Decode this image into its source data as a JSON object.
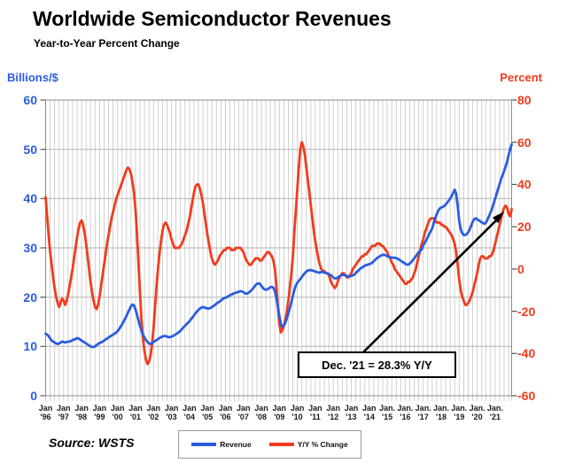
{
  "header": {
    "title": "Worldwide Semiconductor Revenues",
    "subtitle": "Year-to-Year Percent Change"
  },
  "axes": {
    "left": {
      "label": "Billions/$",
      "color": "#2b5ce0",
      "ticks": [
        60,
        50,
        40,
        30,
        20,
        10,
        0
      ]
    },
    "right": {
      "label": "Percent",
      "color": "#f23b1c",
      "ticks": [
        80,
        60,
        40,
        20,
        0,
        -20,
        -40,
        -60
      ]
    },
    "x": {
      "labels": [
        {
          "m": "Jan",
          "y": "'96"
        },
        {
          "m": "Jan",
          "y": "'97"
        },
        {
          "m": "Jan",
          "y": "'98"
        },
        {
          "m": "Jan",
          "y": "'99"
        },
        {
          "m": "Jan",
          "y": "'00"
        },
        {
          "m": "Jan",
          "y": "'01"
        },
        {
          "m": "Jan",
          "y": "'02"
        },
        {
          "m": "Jan",
          "y": "'03"
        },
        {
          "m": "Jan",
          "y": "'04"
        },
        {
          "m": "Jan",
          "y": "'05"
        },
        {
          "m": "Jan",
          "y": "'06"
        },
        {
          "m": "Jan",
          "y": "'07"
        },
        {
          "m": "Jan",
          "y": "'08"
        },
        {
          "m": "Jan",
          "y": "'09"
        },
        {
          "m": "Jan",
          "y": "'10"
        },
        {
          "m": "Jan",
          "y": "'11"
        },
        {
          "m": "Jan",
          "y": "'12"
        },
        {
          "m": "Jan",
          "y": "'13"
        },
        {
          "m": "Jan",
          "y": "'14"
        },
        {
          "m": "Jan.",
          "y": "'15"
        },
        {
          "m": "Jan.",
          "y": "'16"
        },
        {
          "m": "Jan.",
          "y": "'17"
        },
        {
          "m": "Jan.",
          "y": "'18"
        },
        {
          "m": "Jan.",
          "y": "'19"
        },
        {
          "m": "Jan.",
          "y": "'20"
        },
        {
          "m": "Jan.",
          "y": "'21"
        }
      ]
    }
  },
  "annotation": {
    "text": "Dec. '21 = 28.3% Y/Y"
  },
  "legend": {
    "items": [
      {
        "label": "Revenue",
        "color": "#2b5ce0"
      },
      {
        "label": "Y/Y % Change",
        "color": "#f23b1c"
      }
    ]
  },
  "source": "Source: WSTS",
  "chart_data": {
    "type": "line",
    "title": "Worldwide Semiconductor Revenues",
    "subtitle": "Year-to-Year Percent Change",
    "x_start": "1996-01",
    "x_end": "2021-12",
    "x_interval": "monthly",
    "left_axis": {
      "label": "Billions/$",
      "ylim": [
        0,
        60
      ]
    },
    "right_axis": {
      "label": "Percent",
      "ylim": [
        -60,
        80
      ]
    },
    "grid": "dense vertical quarterly lines; horizontal lines every 10 on left scale",
    "legend_position": "bottom-center",
    "annotation": "Dec. '21 = 28.3% Y/Y (arrow pointing to final Y/Y value)",
    "series": [
      {
        "name": "Revenue",
        "axis": "left",
        "unit": "US$ billions per month",
        "color": "#2b5ce0",
        "values": [
          12.6,
          12.4,
          12.1,
          11.6,
          11.2,
          11.0,
          10.8,
          10.6,
          10.5,
          10.6,
          10.8,
          11.0,
          10.9,
          10.8,
          10.9,
          11.0,
          11.0,
          11.1,
          11.3,
          11.4,
          11.5,
          11.7,
          11.6,
          11.4,
          11.2,
          11.0,
          10.8,
          10.6,
          10.4,
          10.2,
          10.0,
          9.9,
          9.9,
          10.0,
          10.3,
          10.5,
          10.7,
          10.8,
          11.0,
          11.2,
          11.4,
          11.6,
          11.8,
          12.0,
          12.2,
          12.4,
          12.6,
          12.8,
          13.1,
          13.5,
          14.0,
          14.5,
          15.0,
          15.6,
          16.2,
          16.9,
          17.5,
          18.2,
          18.5,
          18.3,
          17.5,
          16.4,
          15.2,
          14.1,
          13.2,
          12.4,
          11.8,
          11.3,
          10.9,
          10.6,
          10.5,
          10.7,
          10.9,
          11.1,
          11.3,
          11.5,
          11.7,
          11.9,
          12.0,
          12.1,
          12.1,
          12.0,
          11.9,
          11.9,
          12.0,
          12.1,
          12.3,
          12.5,
          12.7,
          12.9,
          13.2,
          13.5,
          13.9,
          14.2,
          14.5,
          14.8,
          15.1,
          15.5,
          15.9,
          16.3,
          16.7,
          17.1,
          17.4,
          17.7,
          17.9,
          18.0,
          17.9,
          17.8,
          17.7,
          17.7,
          17.8,
          18.0,
          18.2,
          18.4,
          18.7,
          18.9,
          19.1,
          19.3,
          19.6,
          19.8,
          19.9,
          20.0,
          20.2,
          20.4,
          20.5,
          20.7,
          20.8,
          20.9,
          21.0,
          21.1,
          21.2,
          21.2,
          21.0,
          20.8,
          20.7,
          20.8,
          21.0,
          21.3,
          21.6,
          22.0,
          22.4,
          22.7,
          22.8,
          22.7,
          22.3,
          21.9,
          21.6,
          21.5,
          21.6,
          21.8,
          22.0,
          22.1,
          21.9,
          21.2,
          19.8,
          18.0,
          16.2,
          14.6,
          14.0,
          14.2,
          14.8,
          15.7,
          16.7,
          17.8,
          19.0,
          20.3,
          21.5,
          22.4,
          22.9,
          23.3,
          23.7,
          24.1,
          24.5,
          24.9,
          25.2,
          25.4,
          25.5,
          25.5,
          25.4,
          25.3,
          25.2,
          25.1,
          25.0,
          25.0,
          25.1,
          25.1,
          25.0,
          24.9,
          24.8,
          24.7,
          24.5,
          24.3,
          24.0,
          23.8,
          23.8,
          24.0,
          24.2,
          24.4,
          24.5,
          24.5,
          24.4,
          24.3,
          24.2,
          24.2,
          24.3,
          24.4,
          24.6,
          24.9,
          25.2,
          25.5,
          25.8,
          26.0,
          26.2,
          26.4,
          26.5,
          26.6,
          26.7,
          26.8,
          27.0,
          27.3,
          27.6,
          27.9,
          28.1,
          28.3,
          28.5,
          28.6,
          28.6,
          28.5,
          28.3,
          28.2,
          28.1,
          28.0,
          28.0,
          28.0,
          27.9,
          27.8,
          27.6,
          27.4,
          27.2,
          27.0,
          26.8,
          26.6,
          26.6,
          26.8,
          27.1,
          27.5,
          27.9,
          28.3,
          28.7,
          29.1,
          29.4,
          29.7,
          30.5,
          31.0,
          31.6,
          32.2,
          32.8,
          33.4,
          34.0,
          35.0,
          36.0,
          36.8,
          37.5,
          38.0,
          38.2,
          38.3,
          38.5,
          38.8,
          39.2,
          39.6,
          40.0,
          40.5,
          41.2,
          41.8,
          41.0,
          38.6,
          35.5,
          33.8,
          33.0,
          32.6,
          32.6,
          32.8,
          33.2,
          33.7,
          34.5,
          35.3,
          35.8,
          36.0,
          35.8,
          35.6,
          35.4,
          35.2,
          35.0,
          34.9,
          35.2,
          35.8,
          36.5,
          37.2,
          38.0,
          39.0,
          40.0,
          41.0,
          42.0,
          43.0,
          44.0,
          44.8,
          45.6,
          46.5,
          47.5,
          48.8,
          50.0,
          51.0
        ]
      },
      {
        "name": "Y/Y % Change",
        "axis": "right",
        "unit": "percent",
        "color": "#f23b1c",
        "values": [
          34,
          25,
          16,
          8,
          2,
          -4,
          -9,
          -13,
          -16,
          -18,
          -16,
          -14,
          -15,
          -17,
          -15,
          -12,
          -8,
          -4,
          0,
          5,
          10,
          15,
          19,
          22,
          23,
          21,
          17,
          12,
          6,
          0,
          -6,
          -11,
          -15,
          -18,
          -19,
          -17,
          -13,
          -8,
          -3,
          2,
          7,
          12,
          16,
          20,
          24,
          27,
          30,
          33,
          35,
          37,
          39,
          41,
          43,
          45,
          47,
          48,
          47,
          45,
          41,
          36,
          28,
          16,
          2,
          -12,
          -24,
          -33,
          -39,
          -43,
          -45,
          -44,
          -41,
          -36,
          -28,
          -18,
          -8,
          0,
          7,
          13,
          18,
          21,
          22,
          21,
          19,
          17,
          14,
          12,
          10,
          10,
          10,
          10,
          11,
          12,
          14,
          16,
          18,
          21,
          24,
          28,
          32,
          36,
          39,
          40,
          40,
          38,
          35,
          31,
          26,
          21,
          16,
          12,
          8,
          5,
          3,
          2,
          3,
          4,
          6,
          7,
          8,
          9,
          9,
          10,
          10,
          10,
          9,
          9,
          9,
          10,
          10,
          10,
          10,
          9,
          8,
          6,
          4,
          3,
          2,
          2,
          3,
          4,
          5,
          5,
          5,
          4,
          4,
          5,
          6,
          7,
          8,
          8,
          7,
          6,
          4,
          0,
          -8,
          -18,
          -26,
          -30,
          -29,
          -27,
          -24,
          -20,
          -15,
          -9,
          -2,
          6,
          18,
          28,
          38,
          48,
          57,
          60,
          58,
          54,
          48,
          42,
          36,
          30,
          24,
          18,
          13,
          9,
          5,
          2,
          0,
          -1,
          -1,
          -2,
          -2,
          -3,
          -5,
          -7,
          -8,
          -9,
          -8,
          -6,
          -4,
          -3,
          -2,
          -2,
          -3,
          -4,
          -4,
          -3,
          -2,
          0,
          1,
          2,
          3,
          4,
          5,
          6,
          6,
          7,
          7,
          8,
          9,
          10,
          11,
          11,
          11,
          12,
          12,
          12,
          11,
          11,
          10,
          9,
          8,
          6,
          5,
          3,
          2,
          0,
          -1,
          -2,
          -3,
          -4,
          -5,
          -6,
          -7,
          -7,
          -6,
          -6,
          -5,
          -4,
          -2,
          0,
          3,
          6,
          9,
          12,
          14,
          17,
          19,
          21,
          23,
          24,
          24,
          24,
          23,
          22,
          22,
          22,
          21,
          21,
          20,
          20,
          19,
          18,
          17,
          16,
          14,
          12,
          8,
          2,
          -5,
          -10,
          -13,
          -15,
          -17,
          -17,
          -16,
          -15,
          -13,
          -11,
          -8,
          -5,
          -2,
          2,
          5,
          6,
          6,
          5,
          5,
          5,
          6,
          6,
          7,
          9,
          12,
          15,
          18,
          21,
          24,
          27,
          29,
          30,
          29,
          26,
          25,
          28.3
        ]
      }
    ]
  }
}
